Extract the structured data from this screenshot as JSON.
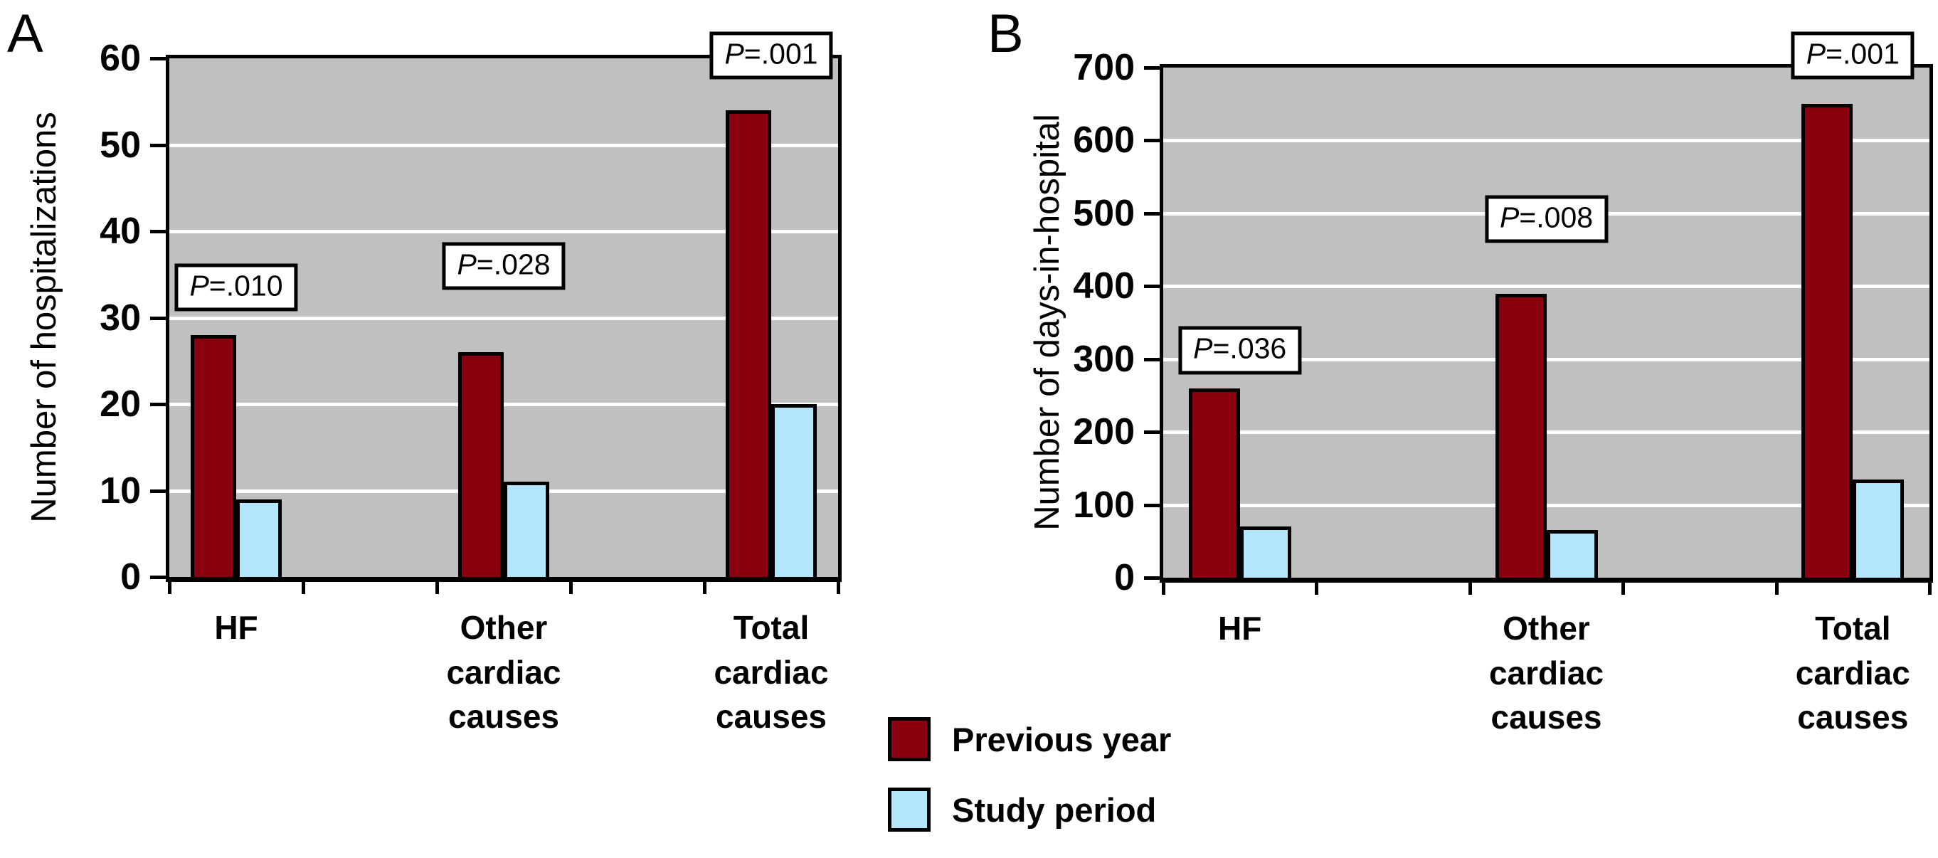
{
  "figure": {
    "panel_a_letter": "A",
    "panel_b_letter": "B"
  },
  "colors": {
    "previous_year": "#8B000E",
    "study_period": "#B3E5FB",
    "plot_background": "#C0C0C0",
    "gridline": "#FFFFFF",
    "frame": "#000000"
  },
  "legend": {
    "items": [
      {
        "label": "Previous year",
        "color": "#8B000E"
      },
      {
        "label": "Study period",
        "color": "#B3E5FB"
      }
    ]
  },
  "chart_data": [
    {
      "panel": "A",
      "type": "bar",
      "title": "",
      "xlabel": "",
      "ylabel": "Number of hospitalizations",
      "ylim": [
        0,
        60
      ],
      "yticks": [
        0,
        10,
        20,
        30,
        40,
        50,
        60
      ],
      "grid": true,
      "legend_position": "bottom",
      "categories": [
        "HF",
        "Other\ncardiac\ncauses",
        "Total\ncardiac\ncauses"
      ],
      "series": [
        {
          "name": "Previous year",
          "color": "#8B000E",
          "values": [
            28,
            26,
            54
          ]
        },
        {
          "name": "Study period",
          "color": "#B3E5FB",
          "values": [
            9,
            11,
            20
          ]
        }
      ],
      "annotations": [
        {
          "p_symbol": "P",
          "text": "=.010",
          "group": 0,
          "y_center": 33.5
        },
        {
          "p_symbol": "P",
          "text": "=.028",
          "group": 1,
          "y_center": 36.0
        },
        {
          "p_symbol": "P",
          "text": "=.001",
          "group": 2,
          "y_center": 60.3
        }
      ]
    },
    {
      "panel": "B",
      "type": "bar",
      "title": "",
      "xlabel": "",
      "ylabel": "Number of days-in-hospital",
      "ylim": [
        0,
        700
      ],
      "yticks": [
        0,
        100,
        200,
        300,
        400,
        500,
        600,
        700
      ],
      "grid": true,
      "legend_position": "bottom",
      "categories": [
        "HF",
        "Other\ncardiac\ncauses",
        "Total\ncardiac\ncauses"
      ],
      "series": [
        {
          "name": "Previous year",
          "color": "#8B000E",
          "values": [
            260,
            390,
            650
          ]
        },
        {
          "name": "Study period",
          "color": "#B3E5FB",
          "values": [
            70,
            65,
            135
          ]
        }
      ],
      "annotations": [
        {
          "p_symbol": "P",
          "text": "=.036",
          "group": 0,
          "y_center": 312
        },
        {
          "p_symbol": "P",
          "text": "=.008",
          "group": 1,
          "y_center": 492
        },
        {
          "p_symbol": "P",
          "text": "=.001",
          "group": 2,
          "y_center": 717
        }
      ]
    }
  ]
}
